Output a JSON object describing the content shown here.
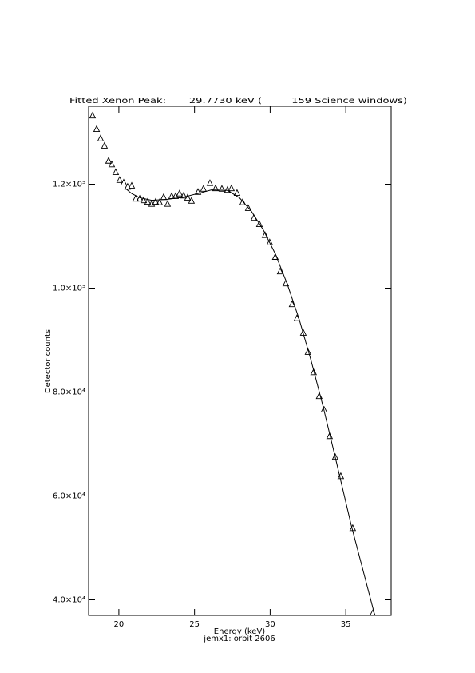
{
  "chart_data": {
    "type": "line",
    "title": "Fitted Xenon Peak:       29.7730 keV (         159 Science windows)",
    "xlabel": "Energy (keV)",
    "subtitle": "jemx1: orbit 2606",
    "ylabel": "Detector counts",
    "xlim": [
      18,
      38
    ],
    "xticks": [
      20,
      25,
      30,
      35
    ],
    "ylim": [
      37000,
      135000
    ],
    "yticks": [
      {
        "value": 40000,
        "label": "4.0×10⁴"
      },
      {
        "value": 60000,
        "label": "6.0×10⁴"
      },
      {
        "value": 80000,
        "label": "8.0×10⁴"
      },
      {
        "value": 100000,
        "label": "1.0×10⁵"
      },
      {
        "value": 120000,
        "label": "1.2×10⁵"
      }
    ],
    "series": [
      {
        "color": "#000000",
        "marker": "triangle",
        "x": [
          18.26,
          18.53,
          18.79,
          19.05,
          19.32,
          19.53,
          19.79,
          20.05,
          20.32,
          20.58,
          20.85,
          21.11,
          21.38,
          21.64,
          21.9,
          22.17,
          22.43,
          22.69,
          22.96,
          23.22,
          23.49,
          23.75,
          24.01,
          24.28,
          24.54,
          24.8,
          25.23,
          25.59,
          26.02,
          26.39,
          26.81,
          27.18,
          27.44,
          27.81,
          28.18,
          28.55,
          28.92,
          29.29,
          29.66,
          29.97,
          30.34,
          30.66,
          31.03,
          31.45,
          31.77,
          32.19,
          32.5,
          32.87,
          33.24,
          33.56,
          33.93,
          34.3,
          34.67,
          35.46,
          36.78
        ],
        "values": [
          133200,
          130600,
          128800,
          127400,
          124500,
          123800,
          122300,
          120800,
          120300,
          119500,
          119700,
          117200,
          117200,
          116900,
          116600,
          116200,
          116600,
          116500,
          117500,
          116200,
          117700,
          117700,
          118200,
          117800,
          117400,
          116800,
          118500,
          119100,
          120200,
          119200,
          119100,
          118900,
          119200,
          118300,
          116500,
          115400,
          113500,
          112300,
          110200,
          108800,
          106000,
          103200,
          100900,
          96900,
          94200,
          91400,
          87700,
          83800,
          79200,
          76600,
          71500,
          67500,
          63800,
          53800,
          37400
        ]
      },
      {
        "color": "#000000",
        "marker": "none",
        "x": [
          20.43,
          20.85,
          21.38,
          22.17,
          23.22,
          24.28,
          25.33,
          26.12,
          27.18,
          27.97,
          28.76,
          29.55,
          30.34,
          31.13,
          31.92,
          32.71,
          33.51,
          34.3,
          35.35,
          36.93
        ],
        "values": [
          119200,
          118200,
          117400,
          116900,
          117100,
          117500,
          118300,
          118900,
          118800,
          117400,
          114800,
          111200,
          106600,
          100800,
          94000,
          86000,
          77100,
          67500,
          54500,
          36900
        ]
      }
    ]
  }
}
